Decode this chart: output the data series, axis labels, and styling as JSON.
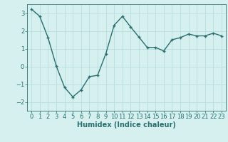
{
  "x": [
    0,
    1,
    2,
    3,
    4,
    5,
    6,
    7,
    8,
    9,
    10,
    11,
    12,
    13,
    14,
    15,
    16,
    17,
    18,
    19,
    20,
    21,
    22,
    23
  ],
  "y": [
    3.22,
    2.82,
    1.62,
    0.02,
    -1.18,
    -1.72,
    -1.32,
    -0.58,
    -0.5,
    0.72,
    2.32,
    2.82,
    2.22,
    1.65,
    1.07,
    1.07,
    0.87,
    1.5,
    1.62,
    1.82,
    1.72,
    1.72,
    1.87,
    1.72
  ],
  "line_color": "#2a6e6e",
  "marker_color": "#2a6e6e",
  "bg_color": "#d6f0f0",
  "grid_color": "#b8dcdc",
  "xlabel": "Humidex (Indice chaleur)",
  "xlim": [
    -0.5,
    23.5
  ],
  "ylim": [
    -2.5,
    3.5
  ],
  "yticks": [
    -2,
    -1,
    0,
    1,
    2,
    3
  ],
  "xticks": [
    0,
    1,
    2,
    3,
    4,
    5,
    6,
    7,
    8,
    9,
    10,
    11,
    12,
    13,
    14,
    15,
    16,
    17,
    18,
    19,
    20,
    21,
    22,
    23
  ],
  "xlabel_fontsize": 7,
  "tick_fontsize": 6,
  "line_width": 1.0,
  "marker_size": 3.0
}
